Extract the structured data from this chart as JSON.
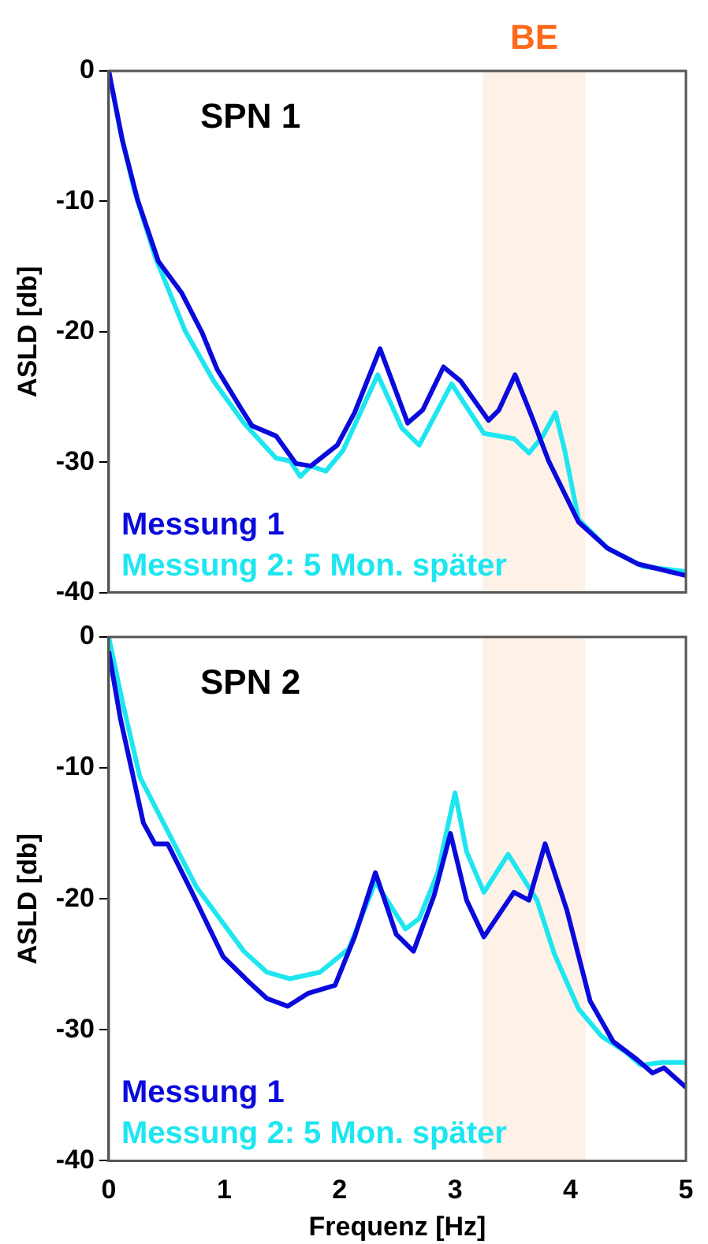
{
  "chart_data": [
    {
      "type": "line",
      "title": "SPN 1",
      "ylabel": "ASLD [db]",
      "xlim": [
        0,
        5
      ],
      "xticks": [
        0,
        1,
        2,
        3,
        4,
        5
      ],
      "ylim": [
        -40,
        0
      ],
      "yticks": [
        0,
        -10,
        -20,
        -30,
        -40
      ],
      "tick_labels": "y",
      "grid": false,
      "legend": "bottom left",
      "marker": "none",
      "line_style": "solid",
      "annotations": [
        "BE"
      ],
      "bands": [
        {
          "axis": "x",
          "from": 3.24,
          "to": 4.13,
          "color": "#fdf1e8"
        }
      ],
      "series": [
        {
          "name": "Messung 1",
          "color": "#0a0adc",
          "x": [
            0,
            0.12,
            0.25,
            0.43,
            0.63,
            0.81,
            0.94,
            1.14,
            1.24,
            1.45,
            1.62,
            1.75,
            1.98,
            2.13,
            2.35,
            2.59,
            2.72,
            2.9,
            3.05,
            3.29,
            3.38,
            3.52,
            3.66,
            3.81,
            4.07,
            4.32,
            4.58,
            5
          ],
          "values": [
            0,
            -5.4,
            -9.9,
            -14.6,
            -17,
            -20.1,
            -22.9,
            -25.8,
            -27.2,
            -28,
            -30.1,
            -30.3,
            -28.7,
            -26.2,
            -21.3,
            -27,
            -26,
            -22.7,
            -23.8,
            -26.8,
            -26,
            -23.3,
            -26.4,
            -29.9,
            -34.6,
            -36.6,
            -37.8,
            -38.7
          ]
        },
        {
          "name": "Messung 2: 5 Mon. später",
          "color": "#1ee6f0",
          "x": [
            0,
            0.1,
            0.22,
            0.4,
            0.66,
            0.91,
            1.17,
            1.45,
            1.57,
            1.66,
            1.75,
            1.88,
            2.03,
            2.33,
            2.54,
            2.69,
            2.97,
            3.25,
            3.51,
            3.64,
            3.76,
            3.87,
            3.95,
            4.07,
            4.32,
            4.63,
            5
          ],
          "values": [
            0,
            -4.6,
            -9.1,
            -14.2,
            -19.9,
            -23.8,
            -27,
            -29.7,
            -29.9,
            -31.1,
            -30.3,
            -30.7,
            -29.1,
            -23.3,
            -27.4,
            -28.7,
            -24,
            -27.8,
            -28.2,
            -29.3,
            -28,
            -26.2,
            -29.1,
            -34.4,
            -36.6,
            -38,
            -38.4
          ]
        }
      ]
    },
    {
      "type": "line",
      "title": "SPN 2",
      "ylabel": "ASLD [db]",
      "xlabel": "Frequenz [Hz]",
      "xlim": [
        0,
        5
      ],
      "xticks": [
        0,
        1,
        2,
        3,
        4,
        5
      ],
      "ylim": [
        -40,
        0
      ],
      "yticks": [
        0,
        -10,
        -20,
        -30,
        -40
      ],
      "grid": false,
      "legend": "bottom left",
      "marker": "none",
      "line_style": "solid",
      "bands": [
        {
          "axis": "x",
          "from": 3.24,
          "to": 4.13,
          "color": "#fdf1e8"
        }
      ],
      "series": [
        {
          "name": "Messung 1",
          "color": "#0a0adc",
          "x": [
            0,
            0.1,
            0.3,
            0.4,
            0.51,
            0.71,
            0.99,
            1.22,
            1.37,
            1.55,
            1.73,
            1.96,
            2.13,
            2.31,
            2.49,
            2.64,
            2.82,
            2.96,
            3.1,
            3.25,
            3.51,
            3.64,
            3.78,
            3.97,
            4.17,
            4.37,
            4.58,
            4.71,
            4.81,
            5
          ],
          "values": [
            -1.1,
            -6.2,
            -14.2,
            -15.8,
            -15.8,
            -19.3,
            -24.4,
            -26.4,
            -27.6,
            -28.2,
            -27.2,
            -26.6,
            -22.9,
            -18,
            -22.7,
            -24,
            -19.7,
            -15,
            -20.1,
            -22.9,
            -19.5,
            -20.1,
            -15.8,
            -20.9,
            -27.8,
            -30.9,
            -32.3,
            -33.3,
            -32.9,
            -34.4
          ]
        },
        {
          "name": "Messung 2: 5 Mon. später",
          "color": "#1ee6f0",
          "x": [
            0,
            0.12,
            0.27,
            0.45,
            0.76,
            1.17,
            1.37,
            1.57,
            1.83,
            2.08,
            2.31,
            2.57,
            2.69,
            2.85,
            3,
            3.1,
            3.25,
            3.46,
            3.71,
            3.86,
            4.07,
            4.27,
            4.48,
            4.61,
            4.79,
            5
          ],
          "values": [
            0,
            -5,
            -10.7,
            -13.8,
            -19.1,
            -24,
            -25.6,
            -26.1,
            -25.6,
            -23.8,
            -18.7,
            -22.3,
            -21.5,
            -18,
            -11.9,
            -16.4,
            -19.5,
            -16.6,
            -20.1,
            -24.2,
            -28.4,
            -30.5,
            -31.7,
            -32.7,
            -32.5,
            -32.5
          ]
        }
      ]
    }
  ]
}
